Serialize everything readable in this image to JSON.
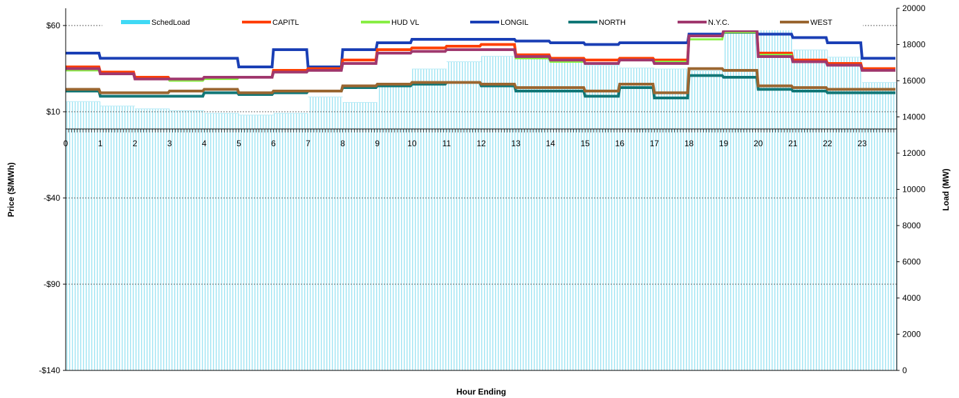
{
  "chart_data": {
    "type": "line",
    "xlabel": "Hour Ending",
    "ylabel_left": "Price ($/MWh)",
    "ylabel_right": "Load (MW)",
    "x_ticks": [
      "0",
      "1",
      "2",
      "3",
      "4",
      "5",
      "6",
      "7",
      "8",
      "9",
      "10",
      "11",
      "12",
      "13",
      "14",
      "15",
      "16",
      "17",
      "18",
      "19",
      "20",
      "21",
      "22",
      "23"
    ],
    "y_left": {
      "min": -140,
      "max": 70,
      "ticks": [
        "$60",
        "$10",
        "-$40",
        "-$90",
        "-$140"
      ],
      "tick_values": [
        60,
        10,
        -40,
        -90,
        -140
      ]
    },
    "y_right": {
      "min": 0,
      "max": 20000,
      "ticks": [
        "20000",
        "18000",
        "16000",
        "14000",
        "12000",
        "10000",
        "8000",
        "6000",
        "4000",
        "2000",
        "0"
      ],
      "tick_values": [
        20000,
        18000,
        16000,
        14000,
        12000,
        10000,
        8000,
        6000,
        4000,
        2000,
        0
      ]
    },
    "gridlines_left": [
      60,
      10,
      -40,
      -90
    ],
    "hours": [
      0,
      1,
      2,
      3,
      4,
      5,
      6,
      7,
      8,
      9,
      10,
      11,
      12,
      13,
      14,
      15,
      16,
      17,
      18,
      19,
      20,
      21,
      22,
      23
    ],
    "load": {
      "name": "SchedLoad",
      "color": "#3fd9f5",
      "values": [
        14850,
        14600,
        14450,
        14350,
        14200,
        14100,
        14200,
        15100,
        14800,
        15700,
        16650,
        17050,
        17350,
        17400,
        17100,
        16850,
        16700,
        16650,
        16550,
        18650,
        18900,
        17700,
        17300,
        15900
      ]
    },
    "series": [
      {
        "name": "LONGIL",
        "color": "#1a3fb5",
        "width": 4,
        "values": [
          44,
          41,
          41,
          41,
          41,
          36,
          46,
          36,
          46,
          50,
          52,
          52,
          52,
          51,
          50,
          49,
          50,
          50,
          55,
          56,
          55,
          53,
          50,
          41
        ]
      },
      {
        "name": "CAPITL",
        "color": "#ff4000",
        "width": 4,
        "values": [
          36,
          33,
          30,
          29,
          30,
          30,
          34,
          35,
          40,
          46,
          47,
          48,
          49,
          43,
          41,
          40,
          41,
          40,
          54,
          57,
          44,
          40,
          38,
          35
        ]
      },
      {
        "name": "HUD VL",
        "color": "#88ee44",
        "width": 3,
        "values": [
          34,
          32,
          29,
          28,
          29,
          30,
          33,
          34,
          38,
          44,
          45,
          46,
          46,
          41,
          39,
          38,
          40,
          39,
          52,
          56,
          43,
          39,
          37,
          34
        ]
      },
      {
        "name": "N.Y.C.",
        "color": "#a0386e",
        "width": 4,
        "values": [
          35,
          32,
          29,
          29,
          30,
          30,
          33,
          34,
          38,
          44,
          45,
          46,
          46,
          42,
          40,
          38,
          40,
          38,
          54,
          57,
          42,
          39,
          37,
          34
        ]
      },
      {
        "name": "NORTH",
        "color": "#117777",
        "width": 4,
        "values": [
          22,
          19,
          19,
          19,
          21,
          20,
          21,
          22,
          24,
          25,
          26,
          27,
          25,
          22,
          22,
          19,
          24,
          18,
          31,
          30,
          23,
          22,
          21,
          21
        ]
      },
      {
        "name": "WEST",
        "color": "#9a6630",
        "width": 4,
        "values": [
          23,
          21,
          21,
          22,
          23,
          21,
          22,
          22,
          25,
          26,
          27,
          27,
          26,
          24,
          24,
          22,
          26,
          21,
          35,
          34,
          25,
          24,
          23,
          23
        ]
      }
    ],
    "legend": {
      "position": "top",
      "items": [
        {
          "label": "SchedLoad",
          "color": "#3fd9f5"
        },
        {
          "label": "CAPITL",
          "color": "#ff4000"
        },
        {
          "label": "HUD VL",
          "color": "#88ee44"
        },
        {
          "label": "LONGIL",
          "color": "#1a3fb5"
        },
        {
          "label": "NORTH",
          "color": "#117777"
        },
        {
          "label": "N.Y.C.",
          "color": "#a0386e"
        },
        {
          "label": "WEST",
          "color": "#9a6630"
        }
      ]
    }
  }
}
